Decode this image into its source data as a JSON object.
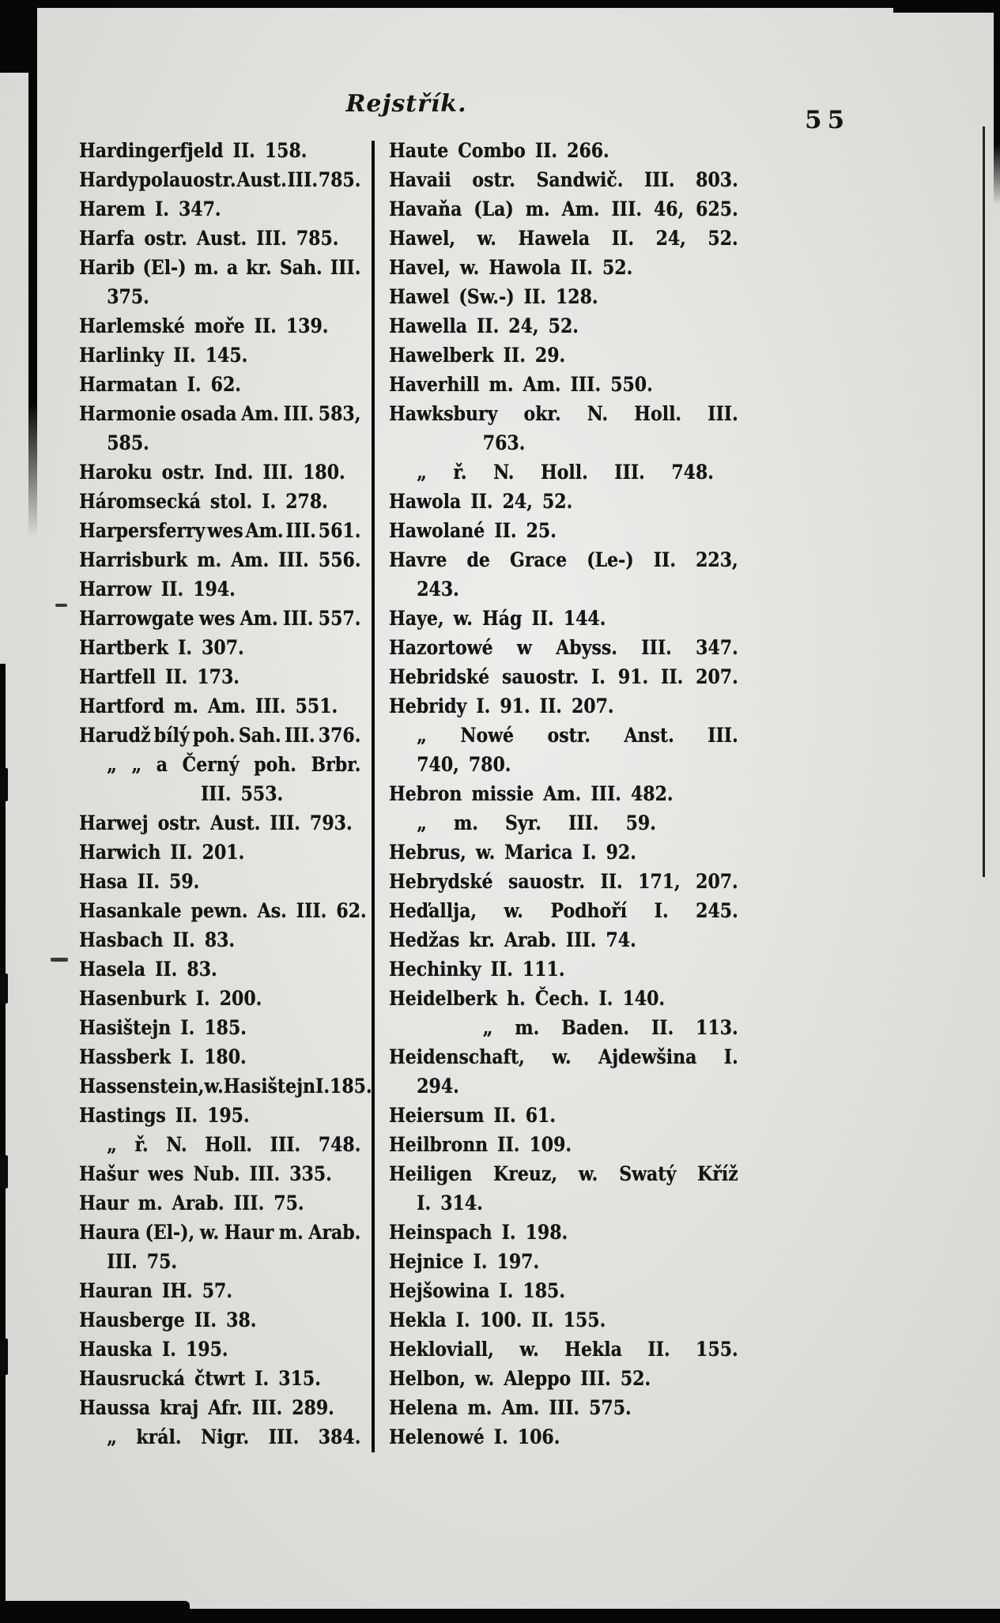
{
  "page": {
    "title": "Rejstřík.",
    "page_number": "55"
  },
  "index": {
    "left": [
      {
        "lines": [
          {
            "t": "Hardingerfjeld II. 158."
          }
        ]
      },
      {
        "lines": [
          {
            "t": "Hardy polauostr. Aust. III. 785.",
            "j": 1
          }
        ]
      },
      {
        "lines": [
          {
            "t": "Harem I. 347."
          }
        ]
      },
      {
        "lines": [
          {
            "t": "Harfa ostr. Aust. III. 785."
          }
        ]
      },
      {
        "lines": [
          {
            "t": "Harib (El-) m. a kr. Sah. III.",
            "j": 1
          },
          {
            "t": "375.",
            "i": 1
          }
        ]
      },
      {
        "lines": [
          {
            "t": "Harlemské moře II. 139."
          }
        ]
      },
      {
        "lines": [
          {
            "t": "Harlinky II. 145."
          }
        ]
      },
      {
        "lines": [
          {
            "t": "Harmatan I. 62."
          }
        ]
      },
      {
        "lines": [
          {
            "t": "Harmonie osada Am. III. 583,",
            "j": 1
          },
          {
            "t": "585.",
            "i": 1
          }
        ]
      },
      {
        "lines": [
          {
            "t": "Haroku ostr. Ind. III. 180."
          }
        ]
      },
      {
        "lines": [
          {
            "t": "Háromsecká stol. I. 278."
          }
        ]
      },
      {
        "lines": [
          {
            "t": "Harpersferry wes Am. III. 561.",
            "j": 1
          }
        ]
      },
      {
        "lines": [
          {
            "t": "Harrisburk m. Am. III. 556."
          }
        ]
      },
      {
        "lines": [
          {
            "t": "Harrow II. 194."
          }
        ]
      },
      {
        "lines": [
          {
            "t": "Harrowgate wes Am. III. 557.",
            "j": 1
          }
        ]
      },
      {
        "lines": [
          {
            "t": "Hartberk I. 307."
          }
        ]
      },
      {
        "lines": [
          {
            "t": "Hartfell II. 173."
          }
        ]
      },
      {
        "lines": [
          {
            "t": "Hartford m. Am. III. 551."
          }
        ]
      },
      {
        "lines": [
          {
            "t": "Harudž bílý poh. Sah. III. 376.",
            "j": 1
          }
        ]
      },
      {
        "lines": [
          {
            "q": 2,
            "t": "a Černý poh. Brbr.",
            "j": 1,
            "i": 1
          },
          {
            "t": "III. 553.",
            "i": 3
          }
        ]
      },
      {
        "lines": [
          {
            "t": "Harwej ostr. Aust. III. 793."
          }
        ]
      },
      {
        "lines": [
          {
            "t": "Harwich II. 201."
          }
        ]
      },
      {
        "lines": [
          {
            "t": "Hasa II. 59."
          }
        ]
      },
      {
        "lines": [
          {
            "t": "Hasankale pewn. As. III. 62."
          }
        ]
      },
      {
        "lines": [
          {
            "t": "Hasbach II. 83."
          }
        ]
      },
      {
        "lines": [
          {
            "t": "Hasela II. 83."
          }
        ]
      },
      {
        "lines": [
          {
            "t": "Hasenburk I. 200."
          }
        ]
      },
      {
        "lines": [
          {
            "t": "Hasištejn I. 185."
          }
        ]
      },
      {
        "lines": [
          {
            "t": "Hassberk I. 180."
          }
        ]
      },
      {
        "lines": [
          {
            "t": "Hassenstein, w. Hasištejn I. 185.",
            "j": 1
          }
        ]
      },
      {
        "lines": [
          {
            "t": "Hastings II. 195."
          }
        ]
      },
      {
        "lines": [
          {
            "q": 1,
            "t": "ř. N. Holl. III. 748.",
            "j": 1,
            "i": 1
          }
        ]
      },
      {
        "lines": [
          {
            "t": "Hašur wes Nub. III. 335."
          }
        ]
      },
      {
        "lines": [
          {
            "t": "Haur m. Arab. III. 75."
          }
        ]
      },
      {
        "lines": [
          {
            "t": "Haura (El-), w. Haur m. Arab.",
            "j": 1
          },
          {
            "t": "III. 75.",
            "i": 1
          }
        ]
      },
      {
        "lines": [
          {
            "t": "Hauran IH. 57."
          }
        ]
      },
      {
        "lines": [
          {
            "t": "Hausberge II. 38."
          }
        ]
      },
      {
        "lines": [
          {
            "t": "Hauska I. 195."
          }
        ]
      },
      {
        "lines": [
          {
            "t": "Hausrucká čtwrt I. 315."
          }
        ]
      },
      {
        "lines": [
          {
            "t": "Haussa kraj Afr. III. 289."
          }
        ]
      },
      {
        "lines": [
          {
            "q": 1,
            "t": "král. Nigr. III. 384.",
            "j": 1,
            "i": 1
          }
        ]
      }
    ],
    "right": [
      {
        "lines": [
          {
            "t": "Haute Combo II. 266."
          }
        ]
      },
      {
        "lines": [
          {
            "t": "Havaii ostr. Sandwič. III. 803.",
            "j": 1
          }
        ]
      },
      {
        "lines": [
          {
            "t": "Havaňa (La) m. Am. III. 46, 625.",
            "j": 1
          }
        ]
      },
      {
        "lines": [
          {
            "t": "Hawel, w. Hawela II. 24, 52.",
            "j": 1
          }
        ]
      },
      {
        "lines": [
          {
            "t": "Havel, w. Hawola II. 52."
          }
        ]
      },
      {
        "lines": [
          {
            "t": "Hawel (Sw.-) II. 128."
          }
        ]
      },
      {
        "lines": [
          {
            "t": "Hawella II. 24, 52."
          }
        ]
      },
      {
        "lines": [
          {
            "t": "Hawelberk II. 29."
          }
        ]
      },
      {
        "lines": [
          {
            "t": "Haverhill m. Am. III. 550."
          }
        ]
      },
      {
        "lines": [
          {
            "t": "Hawksbury okr. N. Holl. III.",
            "j": 1
          },
          {
            "t": "763.",
            "i": 2
          }
        ]
      },
      {
        "lines": [
          {
            "q": 1,
            "t": "ř. N. Holl. III. 748.",
            "j": 1,
            "i": 1,
            "r": 1
          }
        ]
      },
      {
        "lines": [
          {
            "t": "Hawola II. 24, 52."
          }
        ]
      },
      {
        "lines": [
          {
            "t": "Hawolané II. 25."
          }
        ]
      },
      {
        "lines": [
          {
            "t": "Havre de Grace (Le-) II. 223,",
            "j": 1
          },
          {
            "t": "243.",
            "i": 1
          }
        ]
      },
      {
        "lines": [
          {
            "t": "Haye, w. Hág II. 144."
          }
        ]
      },
      {
        "lines": [
          {
            "t": "Hazortowé w Abyss. III. 347.",
            "j": 1
          }
        ]
      },
      {
        "lines": [
          {
            "t": "Hebridské sauostr. I. 91. II. 207.",
            "j": 1
          }
        ]
      },
      {
        "lines": [
          {
            "t": "Hebridy I. 91. II. 207."
          }
        ]
      },
      {
        "lines": [
          {
            "q": 1,
            "t": "Nowé ostr. Anst. III.",
            "j": 1,
            "i": 1
          },
          {
            "t": "740, 780.",
            "i": 1
          }
        ]
      },
      {
        "lines": [
          {
            "t": "Hebron missie Am. III. 482."
          }
        ]
      },
      {
        "lines": [
          {
            "q": 1,
            "t": "m. Syr. III. 59.",
            "i": 1,
            "r": 2
          }
        ]
      },
      {
        "lines": [
          {
            "t": "Hebrus, w. Marica I. 92."
          }
        ]
      },
      {
        "lines": [
          {
            "t": "Hebrydské sauostr. II. 171, 207.",
            "j": 1
          }
        ]
      },
      {
        "lines": [
          {
            "t": "Heďallja, w. Podhoří I. 245.",
            "j": 1
          }
        ]
      },
      {
        "lines": [
          {
            "t": "Hedžas kr. Arab. III. 74."
          }
        ]
      },
      {
        "lines": [
          {
            "t": "Hechinky II. 111."
          }
        ]
      },
      {
        "lines": [
          {
            "t": "Heidelberk h. Čech. I. 140."
          }
        ]
      },
      {
        "lines": [
          {
            "q": 1,
            "t": "m. Baden. II. 113.",
            "j": 1,
            "i": 2
          }
        ]
      },
      {
        "lines": [
          {
            "t": "Heidenschaft, w. Ajdewšina I.",
            "j": 1
          },
          {
            "t": "294.",
            "i": 1
          }
        ]
      },
      {
        "lines": [
          {
            "t": "Heiersum II. 61."
          }
        ]
      },
      {
        "lines": [
          {
            "t": "Heilbronn II. 109."
          }
        ]
      },
      {
        "lines": [
          {
            "t": "Heiligen Kreuz, w. Swatý Kříž",
            "j": 1
          },
          {
            "t": "I. 314.",
            "i": 1
          }
        ]
      },
      {
        "lines": [
          {
            "t": "Heinspach I. 198."
          }
        ]
      },
      {
        "lines": [
          {
            "t": "Hejnice I. 197."
          }
        ]
      },
      {
        "lines": [
          {
            "t": "Hejšowina I. 185."
          }
        ]
      },
      {
        "lines": [
          {
            "t": "Hekla I. 100. II. 155."
          }
        ]
      },
      {
        "lines": [
          {
            "t": "Hekloviall, w. Hekla II. 155.",
            "j": 1
          }
        ]
      },
      {
        "lines": [
          {
            "t": "Helbon, w. Aleppo III. 52."
          }
        ]
      },
      {
        "lines": [
          {
            "t": "Helena m. Am. III. 575."
          }
        ]
      },
      {
        "lines": [
          {
            "t": "Helenowé I. 106."
          }
        ]
      }
    ]
  }
}
